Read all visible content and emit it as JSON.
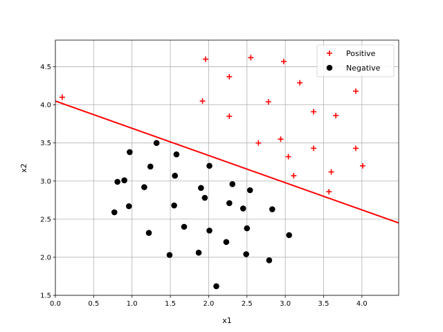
{
  "chart_data": {
    "type": "scatter",
    "title": "",
    "xlabel": "x1",
    "ylabel": "x2",
    "xlim": [
      0.0,
      4.48
    ],
    "ylim": [
      1.5,
      4.85
    ],
    "grid": true,
    "legend_position": "top-right",
    "x_ticks": [
      "0.0",
      "0.5",
      "1.0",
      "1.5",
      "2.0",
      "2.5",
      "3.0",
      "3.5",
      "4.0"
    ],
    "y_ticks": [
      "1.5",
      "2.0",
      "2.5",
      "3.0",
      "3.5",
      "4.0",
      "4.5"
    ],
    "series": [
      {
        "name": "Positive",
        "marker": "plus",
        "color": "#ff0000",
        "points": [
          [
            0.09,
            4.1
          ],
          [
            1.96,
            4.6
          ],
          [
            2.55,
            4.62
          ],
          [
            2.98,
            4.57
          ],
          [
            2.27,
            4.37
          ],
          [
            3.19,
            4.29
          ],
          [
            3.92,
            4.18
          ],
          [
            1.92,
            4.05
          ],
          [
            2.78,
            4.04
          ],
          [
            3.37,
            3.91
          ],
          [
            3.66,
            3.86
          ],
          [
            2.27,
            3.85
          ],
          [
            2.65,
            3.5
          ],
          [
            2.94,
            3.55
          ],
          [
            3.37,
            3.43
          ],
          [
            3.92,
            3.43
          ],
          [
            3.04,
            3.32
          ],
          [
            4.01,
            3.2
          ],
          [
            3.6,
            3.12
          ],
          [
            3.11,
            3.07
          ],
          [
            3.57,
            2.86
          ]
        ]
      },
      {
        "name": "Negative",
        "marker": "circle",
        "color": "#000000",
        "points": [
          [
            0.97,
            3.38
          ],
          [
            1.32,
            3.5
          ],
          [
            1.58,
            3.35
          ],
          [
            1.24,
            3.19
          ],
          [
            2.01,
            3.2
          ],
          [
            1.56,
            3.07
          ],
          [
            0.81,
            2.99
          ],
          [
            0.9,
            3.01
          ],
          [
            1.16,
            2.92
          ],
          [
            1.9,
            2.91
          ],
          [
            2.31,
            2.96
          ],
          [
            2.54,
            2.88
          ],
          [
            1.95,
            2.78
          ],
          [
            0.96,
            2.67
          ],
          [
            1.55,
            2.68
          ],
          [
            2.27,
            2.71
          ],
          [
            2.45,
            2.64
          ],
          [
            2.83,
            2.63
          ],
          [
            0.77,
            2.59
          ],
          [
            1.68,
            2.4
          ],
          [
            2.01,
            2.35
          ],
          [
            2.5,
            2.38
          ],
          [
            1.22,
            2.32
          ],
          [
            3.05,
            2.29
          ],
          [
            2.23,
            2.2
          ],
          [
            1.49,
            2.03
          ],
          [
            1.87,
            2.06
          ],
          [
            2.49,
            2.04
          ],
          [
            2.79,
            1.96
          ],
          [
            2.1,
            1.62
          ]
        ]
      }
    ],
    "boundary_line": {
      "color": "#ff0000",
      "points": [
        [
          0.0,
          4.05
        ],
        [
          4.48,
          2.45
        ]
      ]
    }
  }
}
